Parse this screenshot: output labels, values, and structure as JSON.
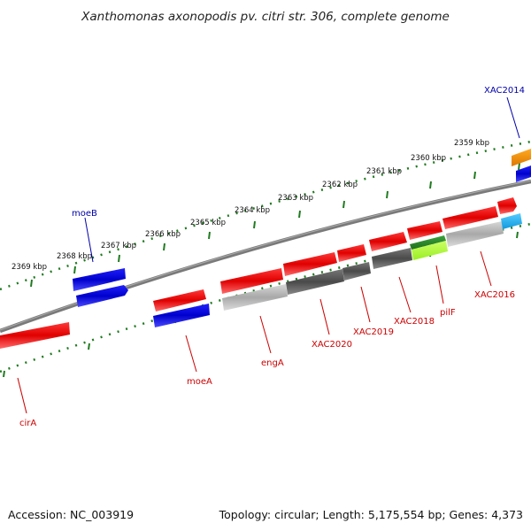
{
  "title": "Xanthomonas axonopodis pv. citri str. 306, complete genome",
  "footer": {
    "accession": "Accession: NC_003919",
    "summary": "Topology: circular; Length: 5,175,554 bp; Genes: 4,373"
  },
  "colors": {
    "backbone": "#808080",
    "ticks": "#1f7a1f",
    "forward_gene": "#e60000",
    "reverse_gene": "#0000cc",
    "forward_label": "#cc0000",
    "reverse_label": "#0000aa",
    "dark_gray_gene": "#555555",
    "light_gray_gene": "#bbbbbb",
    "green_gene": "#2e8b2e",
    "lime_gene": "#aaff33",
    "orange_gene": "#ee8800",
    "cyan_gene": "#22aaee"
  },
  "scale_labels": [
    "2359 kbp",
    "2360 kbp",
    "2361 kbp",
    "2362 kbp",
    "2363 kbp",
    "2364 kbp",
    "2365 kbp",
    "2366 kbp",
    "2367 kbp",
    "2368 kbp",
    "2369 kbp"
  ],
  "gene_labels": [
    {
      "id": "XAC2014",
      "text": "XAC2014",
      "strand": "reverse"
    },
    {
      "id": "moeB",
      "text": "moeB",
      "strand": "reverse"
    },
    {
      "id": "cirA",
      "text": "cirA",
      "strand": "forward"
    },
    {
      "id": "moeA",
      "text": "moeA",
      "strand": "forward"
    },
    {
      "id": "engA",
      "text": "engA",
      "strand": "forward"
    },
    {
      "id": "XAC2020",
      "text": "XAC2020",
      "strand": "forward"
    },
    {
      "id": "XAC2019",
      "text": "XAC2019",
      "strand": "forward"
    },
    {
      "id": "XAC2018",
      "text": "XAC2018",
      "strand": "forward"
    },
    {
      "id": "pilF",
      "text": "pilF",
      "strand": "forward"
    },
    {
      "id": "XAC2016",
      "text": "XAC2016",
      "strand": "forward"
    }
  ]
}
